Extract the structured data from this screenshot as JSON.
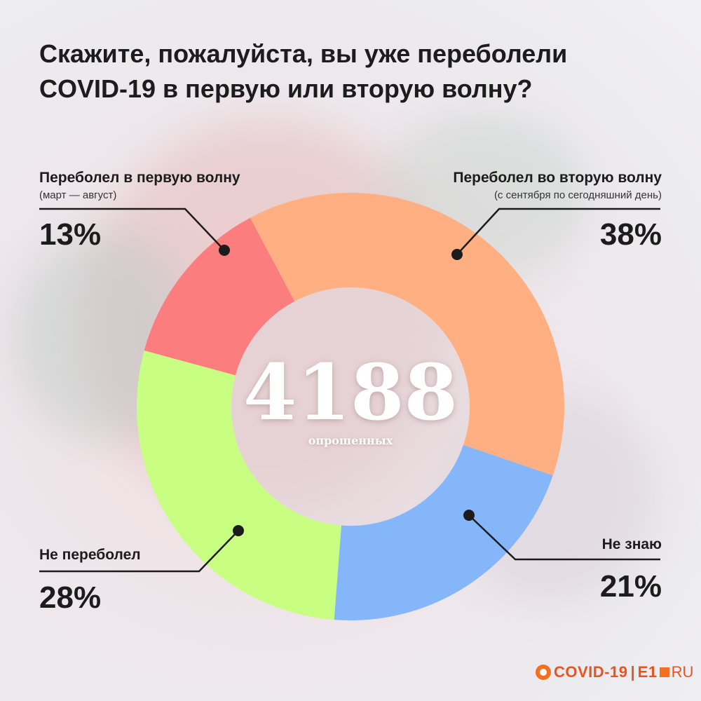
{
  "title": "Скажите, пожалуйста, вы уже переболели COVID-19 в первую или вторую волну?",
  "center": {
    "total": "4188",
    "caption": "опрошенных"
  },
  "labels": {
    "first_wave": {
      "name": "Переболел в первую волну",
      "sub": "(март — август)",
      "pct": "13%"
    },
    "second_wave": {
      "name": "Переболел во вторую волну",
      "sub": "(с сентября по сегодняшний день)",
      "pct": "38%"
    },
    "not_sick": {
      "name": "Не переболел",
      "pct": "28%"
    },
    "dont_know": {
      "name": "Не знаю",
      "pct": "21%"
    }
  },
  "chart_data": {
    "type": "pie",
    "donut": true,
    "title": "Скажите, пожалуйста, вы уже переболели COVID-19 в первую или вторую волну?",
    "slices": [
      {
        "label": "Переболел во вторую волну",
        "value": 38,
        "color": "#ffaf82"
      },
      {
        "label": "Не знаю",
        "value": 21,
        "color": "#85b6fa"
      },
      {
        "label": "Не переболел",
        "value": 28,
        "color": "#c8ff82"
      },
      {
        "label": "Переболел в первую волну",
        "value": 13,
        "color": "#fb7d7d"
      }
    ],
    "start_angle_deg": -28,
    "total_respondents": 4188
  },
  "logo": {
    "main": "COVID-19",
    "separator": "|",
    "e1": "E1",
    "ru": "RU"
  },
  "colors": {
    "accent": "#e8541f",
    "text": "#1c1c1c"
  }
}
